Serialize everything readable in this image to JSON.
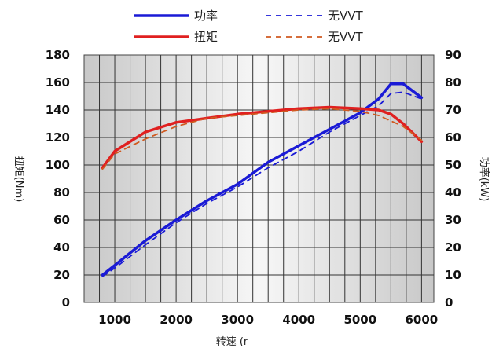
{
  "chart_data": {
    "type": "line",
    "title": "",
    "xlabel": "转速 (r",
    "ylabel_left": "扭矩(Nm)",
    "ylabel_right": "功率(kW)",
    "x_ticks": [
      1000,
      2000,
      3000,
      4000,
      5000,
      6000
    ],
    "y_left_ticks": [
      0,
      20,
      40,
      60,
      80,
      100,
      120,
      140,
      160,
      180
    ],
    "y_right_ticks": [
      0,
      10,
      20,
      30,
      40,
      50,
      60,
      70,
      80,
      90
    ],
    "xlim": [
      500,
      6200
    ],
    "ylim_left": [
      0,
      180
    ],
    "ylim_right": [
      0,
      90
    ],
    "grid": true,
    "legend_position": "top",
    "series": [
      {
        "name": "功率",
        "axis": "right",
        "style": "solid",
        "color": "#1a1ad6",
        "x": [
          800,
          1000,
          1500,
          2000,
          2500,
          3000,
          3500,
          4000,
          4500,
          5000,
          5300,
          5500,
          5700,
          6000
        ],
        "y": [
          10,
          13.5,
          22.5,
          30,
          37,
          43,
          51,
          57,
          63,
          69,
          74,
          79.5,
          79.5,
          74.5
        ]
      },
      {
        "name": "无VVT",
        "axis": "right",
        "style": "dashed",
        "color": "#1a1ad6",
        "x": [
          800,
          1000,
          1500,
          2000,
          2500,
          3000,
          3500,
          4000,
          4500,
          5000,
          5300,
          5500,
          5700,
          6000
        ],
        "y": [
          9.5,
          12.5,
          21,
          29,
          36,
          42,
          49,
          55,
          62,
          68,
          71.5,
          76,
          76.5,
          74
        ]
      },
      {
        "name": "扭矩",
        "axis": "left",
        "style": "solid",
        "color": "#e02020",
        "x": [
          800,
          1000,
          1500,
          2000,
          2500,
          3000,
          3500,
          4000,
          4500,
          5000,
          5300,
          5500,
          5700,
          6000
        ],
        "y": [
          98,
          110,
          124,
          131,
          134,
          137,
          139,
          141,
          142,
          141,
          140,
          137,
          130,
          117
        ]
      },
      {
        "name": "无VVT",
        "axis": "left",
        "style": "dashed",
        "color": "#d05a20",
        "x": [
          800,
          1000,
          1500,
          2000,
          2500,
          3000,
          3500,
          4000,
          4500,
          5000,
          5300,
          5500,
          5700,
          6000
        ],
        "y": [
          97,
          108,
          119,
          128,
          134,
          136,
          138,
          140,
          141,
          139,
          136,
          132,
          128,
          118
        ]
      }
    ]
  }
}
